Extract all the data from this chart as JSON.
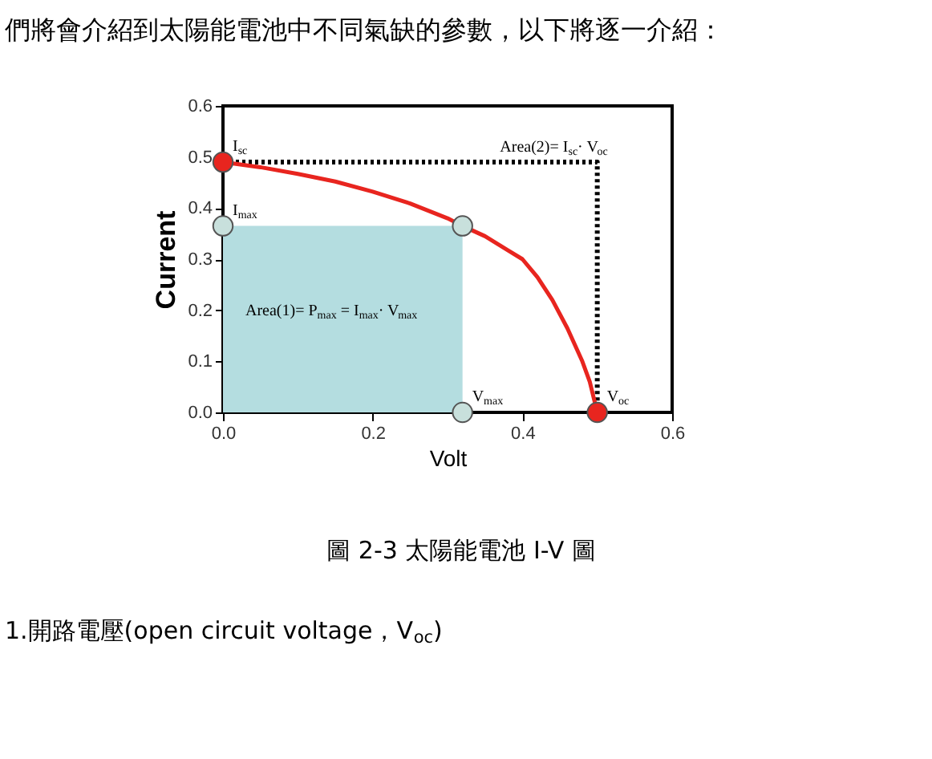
{
  "chart_data": {
    "type": "line",
    "title": "們將會介紹到太陽能電池中不同氣缺的參數，以下將逐一介紹：",
    "xlabel": "Volt",
    "ylabel": "Current",
    "xlim": [
      0,
      0.6
    ],
    "ylim": [
      0,
      0.6
    ],
    "xticks": [
      {
        "value": 0,
        "label": "0.0"
      },
      {
        "value": 0.2,
        "label": "0.2"
      },
      {
        "value": 0.4,
        "label": "0.4"
      },
      {
        "value": 0.6,
        "label": "0.6"
      }
    ],
    "yticks": [
      {
        "value": 0,
        "label": "0.0"
      },
      {
        "value": 0.1,
        "label": "0.1"
      },
      {
        "value": 0.2,
        "label": "0.2"
      },
      {
        "value": 0.3,
        "label": "0.3"
      },
      {
        "value": 0.4,
        "label": "0.4"
      },
      {
        "value": 0.5,
        "label": "0.5"
      },
      {
        "value": 0.6,
        "label": "0.6"
      }
    ],
    "grid": false,
    "series": [
      {
        "type": "area",
        "color": "#b4dde0",
        "x": [
          0,
          0.32
        ],
        "values": [
          0.365,
          0.365
        ]
      },
      {
        "type": "line",
        "color": "#000000",
        "line_style": "dotted",
        "marker": "none",
        "x": [
          0,
          0.5,
          0.5
        ],
        "values": [
          0.49,
          0.49,
          0
        ]
      },
      {
        "color": "#e8251f",
        "line_style": "solid",
        "marker": "none",
        "x": [
          0,
          0.05,
          0.1,
          0.15,
          0.2,
          0.25,
          0.3,
          0.32,
          0.35,
          0.38,
          0.4,
          0.42,
          0.44,
          0.46,
          0.48,
          0.49,
          0.5
        ],
        "values": [
          0.49,
          0.48,
          0.467,
          0.452,
          0.432,
          0.409,
          0.38,
          0.365,
          0.345,
          0.318,
          0.3,
          0.265,
          0.22,
          0.165,
          0.1,
          0.06,
          0
        ]
      },
      {
        "type": "scatter",
        "marker": "circle",
        "x": [
          0,
          0,
          0.32,
          0.32,
          0.5
        ],
        "values": [
          0.49,
          0.365,
          0.365,
          0,
          0
        ],
        "colors": [
          "#e8251f",
          "#c8e0dc",
          "#c8e0dc",
          "#c8e0dc",
          "#e8251f"
        ]
      }
    ],
    "annotations": [
      {
        "text": "I$_{sc}$",
        "x": 0,
        "y": 0.49
      },
      {
        "text": "I$_{max}$",
        "x": 0,
        "y": 0.365
      },
      {
        "text": "V$_{max}$",
        "x": 0.32,
        "y": 0
      },
      {
        "text": "V$_{oc}$",
        "x": 0.5,
        "y": 0
      },
      "Area(2)= I$_{sc}$· V$_{oc}$",
      "Area(1)= P$_{max}$ = I$_{max}$· V$_{max}$",
      "圖 2-3 太陽能電池 I-V 圖",
      "1.開路電壓(open circuit voltage，V$_{oc}$)"
    ]
  }
}
